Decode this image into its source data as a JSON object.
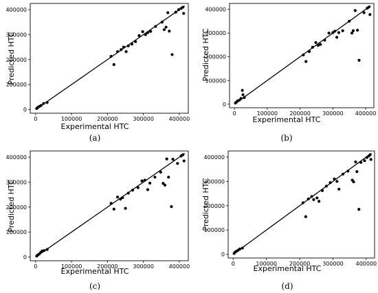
{
  "chart_data": [
    {
      "type": "scatter",
      "panel_label": "(a)",
      "xlabel": "Experimental HTC",
      "ylabel": "Predicted HTC",
      "xlim": [
        -15000,
        425000
      ],
      "ylim": [
        -15000,
        425000
      ],
      "xticks": [
        "0",
        "100000",
        "200000",
        "300000",
        "400000"
      ],
      "yticks": [
        "0",
        "100000",
        "200000",
        "300000",
        "400000"
      ],
      "line": {
        "x": [
          0,
          415000
        ],
        "y": [
          0,
          415000
        ]
      },
      "points": {
        "x": [
          3000,
          6000,
          10000,
          15000,
          22000,
          32000,
          210000,
          218000,
          228000,
          238000,
          245000,
          252000,
          258000,
          268000,
          278000,
          288000,
          298000,
          306000,
          312000,
          320000,
          334000,
          352000,
          358000,
          363000,
          368000,
          372000,
          380000,
          390000,
          398000,
          405000,
          410000,
          412000
        ],
        "y": [
          4000,
          8000,
          12000,
          16000,
          24000,
          28000,
          213000,
          180000,
          232000,
          240000,
          250000,
          232000,
          255000,
          262000,
          272000,
          296000,
          312000,
          300000,
          308000,
          313000,
          333000,
          350000,
          320000,
          330000,
          388000,
          314000,
          220000,
          390000,
          400000,
          405000,
          410000,
          385000
        ]
      }
    },
    {
      "type": "scatter",
      "panel_label": "(b)",
      "xlabel": "Experimental HTC",
      "ylabel": "Predicted HTC",
      "xlim": [
        -15000,
        425000
      ],
      "ylim": [
        -15000,
        425000
      ],
      "xticks": [
        "0",
        "100000",
        "200000",
        "300000",
        "400000"
      ],
      "yticks": [
        "0",
        "100000",
        "200000",
        "300000",
        "400000"
      ],
      "line": {
        "x": [
          0,
          415000
        ],
        "y": [
          0,
          415000
        ]
      },
      "points": {
        "x": [
          3000,
          6000,
          10000,
          15000,
          20000,
          24000,
          26000,
          30000,
          210000,
          218000,
          228000,
          238000,
          248000,
          255000,
          262000,
          275000,
          288000,
          300000,
          306000,
          312000,
          318000,
          330000,
          350000,
          358000,
          362000,
          368000,
          375000,
          380000,
          395000,
          405000,
          410000,
          413000
        ],
        "y": [
          5000,
          9000,
          14000,
          17000,
          24000,
          58000,
          40000,
          28000,
          208000,
          180000,
          222000,
          240000,
          260000,
          248000,
          252000,
          270000,
          300000,
          302000,
          308000,
          282000,
          302000,
          310000,
          350000,
          300000,
          310000,
          395000,
          312000,
          185000,
          386000,
          405000,
          410000,
          378000
        ]
      }
    },
    {
      "type": "scatter",
      "panel_label": "(c)",
      "xlabel": "Experimental HTC",
      "ylabel": "Predicted HTC",
      "xlim": [
        -15000,
        425000
      ],
      "ylim": [
        -15000,
        425000
      ],
      "xticks": [
        "0",
        "100000",
        "200000",
        "300000",
        "400000"
      ],
      "yticks": [
        "0",
        "100000",
        "200000",
        "300000",
        "400000"
      ],
      "line": {
        "x": [
          0,
          415000
        ],
        "y": [
          0,
          415000
        ]
      },
      "points": {
        "x": [
          3000,
          6000,
          10000,
          14000,
          18000,
          24000,
          32000,
          210000,
          218000,
          228000,
          236000,
          242000,
          250000,
          258000,
          270000,
          285000,
          296000,
          304000,
          312000,
          318000,
          332000,
          348000,
          355000,
          360000,
          365000,
          370000,
          378000,
          382000,
          395000,
          405000,
          410000,
          413000
        ],
        "y": [
          4000,
          8000,
          12000,
          18000,
          24000,
          26000,
          30000,
          215000,
          192000,
          240000,
          232000,
          238000,
          195000,
          256000,
          268000,
          278000,
          305000,
          308000,
          270000,
          296000,
          320000,
          340000,
          295000,
          288000,
          393000,
          320000,
          202000,
          392000,
          375000,
          405000,
          410000,
          385000
        ]
      }
    },
    {
      "type": "scatter",
      "panel_label": "(d)",
      "xlabel": "Experimental HTC",
      "ylabel": "Predicted HTC",
      "xlim": [
        -15000,
        425000
      ],
      "ylim": [
        -15000,
        425000
      ],
      "xticks": [
        "0",
        "100000",
        "200000",
        "300000",
        "400000"
      ],
      "yticks": [
        "0",
        "100000",
        "200000",
        "300000",
        "400000"
      ],
      "line": {
        "x": [
          0,
          415000
        ],
        "y": [
          0,
          415000
        ]
      },
      "points": {
        "x": [
          3000,
          6000,
          10000,
          15000,
          20000,
          28000,
          210000,
          218000,
          226000,
          236000,
          242000,
          252000,
          258000,
          268000,
          280000,
          292000,
          304000,
          312000,
          318000,
          330000,
          345000,
          358000,
          362000,
          368000,
          372000,
          378000,
          384000,
          395000,
          402000,
          408000,
          412000,
          414000
        ],
        "y": [
          4000,
          9000,
          13000,
          17000,
          22000,
          26000,
          212000,
          155000,
          228000,
          238000,
          225000,
          232000,
          218000,
          262000,
          280000,
          295000,
          310000,
          300000,
          268000,
          330000,
          342000,
          305000,
          298000,
          380000,
          340000,
          185000,
          378000,
          385000,
          398000,
          405000,
          410000,
          390000
        ]
      }
    }
  ]
}
